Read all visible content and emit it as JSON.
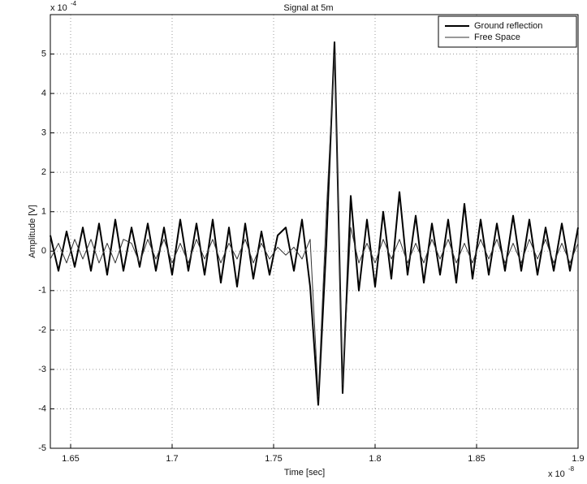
{
  "chart_data": {
    "type": "line",
    "title": "Signal at 5m",
    "x_label": "Time [sec]",
    "y_label": "Amplitude [V]",
    "x_scale_base": "x 10",
    "x_scale_exponent": "-8",
    "y_scale_base": "x 10",
    "y_scale_exponent": "-4",
    "x": [
      1.64,
      1.644,
      1.648,
      1.652,
      1.656,
      1.66,
      1.664,
      1.668,
      1.672,
      1.676,
      1.68,
      1.684,
      1.688,
      1.692,
      1.696,
      1.7,
      1.704,
      1.708,
      1.712,
      1.716,
      1.72,
      1.724,
      1.728,
      1.732,
      1.736,
      1.74,
      1.744,
      1.748,
      1.752,
      1.756,
      1.76,
      1.764,
      1.768,
      1.772,
      1.776,
      1.78,
      1.784,
      1.788,
      1.792,
      1.796,
      1.8,
      1.804,
      1.808,
      1.812,
      1.816,
      1.82,
      1.824,
      1.828,
      1.832,
      1.836,
      1.84,
      1.844,
      1.848,
      1.852,
      1.856,
      1.86,
      1.864,
      1.868,
      1.872,
      1.876,
      1.88,
      1.884,
      1.888,
      1.892,
      1.896,
      1.9
    ],
    "series": [
      {
        "name": "Ground reflection",
        "color": "#000000",
        "values": [
          0.4,
          -0.5,
          0.5,
          -0.4,
          0.6,
          -0.5,
          0.7,
          -0.6,
          0.8,
          -0.5,
          0.6,
          -0.4,
          0.7,
          -0.5,
          0.6,
          -0.6,
          0.8,
          -0.5,
          0.7,
          -0.6,
          0.8,
          -0.8,
          0.6,
          -0.9,
          0.7,
          -0.7,
          0.5,
          -0.6,
          0.4,
          0.6,
          -0.5,
          0.8,
          -0.9,
          -3.9,
          0.2,
          5.3,
          -3.6,
          1.4,
          -1.0,
          0.8,
          -0.9,
          1.0,
          -0.7,
          1.5,
          -0.6,
          0.9,
          -0.8,
          0.7,
          -0.6,
          0.8,
          -0.8,
          1.2,
          -0.7,
          0.8,
          -0.6,
          0.7,
          -0.5,
          0.9,
          -0.5,
          0.8,
          -0.6,
          0.6,
          -0.5,
          0.7,
          -0.5,
          0.6
        ]
      },
      {
        "name": "Free Space",
        "color": "#333333",
        "values": [
          -0.2,
          0.2,
          -0.3,
          0.3,
          -0.2,
          0.3,
          -0.3,
          0.2,
          -0.3,
          0.3,
          0.2,
          -0.3,
          0.3,
          -0.2,
          0.3,
          -0.3,
          0.2,
          -0.3,
          0.3,
          -0.2,
          0.3,
          -0.3,
          0.2,
          -0.2,
          0.3,
          -0.3,
          0.2,
          -0.2,
          0.1,
          -0.1,
          0.1,
          -0.2,
          0.3,
          -3.7,
          1.0,
          5.0,
          -3.4,
          0.6,
          -0.3,
          0.2,
          -0.3,
          0.3,
          -0.2,
          0.3,
          -0.3,
          0.2,
          -0.3,
          0.3,
          -0.2,
          0.3,
          -0.3,
          0.2,
          -0.3,
          0.3,
          -0.2,
          0.3,
          -0.3,
          0.2,
          -0.3,
          0.3,
          -0.2,
          0.3,
          -0.3,
          0.2,
          -0.3,
          0.2
        ]
      }
    ],
    "xlim": [
      1.64,
      1.9
    ],
    "xticks": [
      1.65,
      1.7,
      1.75,
      1.8,
      1.85,
      1.9
    ],
    "ylim": [
      -5,
      6
    ],
    "yticks": [
      -5,
      -4,
      -3,
      -2,
      -1,
      0,
      1,
      2,
      3,
      4,
      5
    ],
    "grid": true,
    "legend": "upper right"
  }
}
